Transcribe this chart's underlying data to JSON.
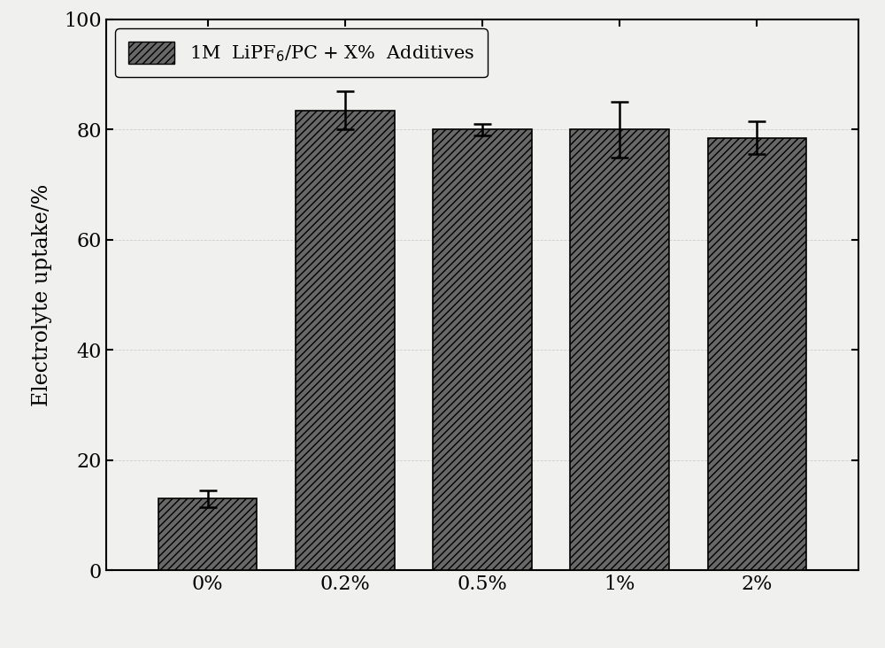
{
  "categories": [
    "0%",
    "0.2%",
    "0.5%",
    "1%",
    "2%"
  ],
  "values": [
    13.0,
    83.5,
    80.0,
    80.0,
    78.5
  ],
  "errors": [
    1.5,
    3.5,
    1.0,
    5.0,
    3.0
  ],
  "bar_color": "#686868",
  "bar_width": 0.72,
  "ylabel": "Electrolyte uptake/%",
  "ylim": [
    0,
    100
  ],
  "yticks": [
    0,
    20,
    40,
    60,
    80,
    100
  ],
  "legend_label": "1M  LiPF$_6$/PC + X%  Additives",
  "background_color": "#f0f0ee",
  "plot_bg_color": "#f0f0ee",
  "grid_color": "#aaaaaa",
  "font_size_axis": 17,
  "font_size_ticks": 16,
  "font_size_legend": 15,
  "figsize": [
    10.0,
    7.32
  ],
  "dpi": 100
}
